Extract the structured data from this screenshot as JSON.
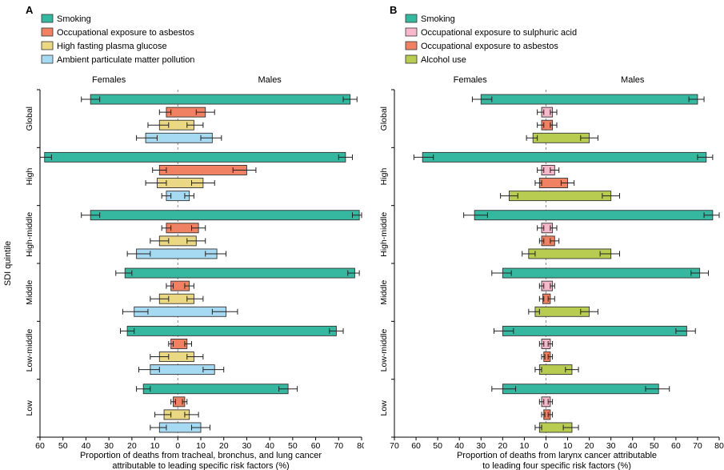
{
  "figure": {
    "background": "#ffffff",
    "bar_stroke": "#333333",
    "error_color": "#222222",
    "zero_line_color": "#8a8a8a"
  },
  "chart_data": [
    {
      "type": "bar",
      "panel_label": "A",
      "orientation": "horizontal-diverging",
      "female_label": "Females",
      "male_label": "Males",
      "ylabel": "SDI quintile",
      "xlabel_lines": [
        "Proportion of deaths from tracheal, bronchus, and lung cancer",
        "attributable to leading specific risk factors (%)"
      ],
      "categories": [
        "Global",
        "High",
        "High-middle",
        "Middle",
        "Low-middle",
        "Low"
      ],
      "x_domain": [
        -60,
        80
      ],
      "x_tick_step": 10,
      "legend_position": "top-left",
      "grid": false,
      "series": [
        {
          "name": "Smoking",
          "color": "#35b7a0",
          "female": [
            38,
            58,
            38,
            23,
            22,
            15
          ],
          "female_ci": [
            [
              34,
              42
            ],
            [
              55,
              60
            ],
            [
              34,
              42
            ],
            [
              20,
              27
            ],
            [
              19,
              25
            ],
            [
              12,
              18
            ]
          ],
          "male": [
            75,
            73,
            79,
            77,
            69,
            48
          ],
          "male_ci": [
            [
              72,
              78
            ],
            [
              70,
              76
            ],
            [
              76,
              80
            ],
            [
              74,
              79
            ],
            [
              66,
              72
            ],
            [
              44,
              52
            ]
          ]
        },
        {
          "name": "Occupational exposure to asbestos",
          "color": "#f08162",
          "female": [
            5,
            8,
            5,
            3,
            3,
            2
          ],
          "female_ci": [
            [
              3,
              8
            ],
            [
              5,
              11
            ],
            [
              3,
              7
            ],
            [
              2,
              5
            ],
            [
              2,
              4
            ],
            [
              1,
              3
            ]
          ],
          "male": [
            12,
            30,
            9,
            5,
            4,
            3
          ],
          "male_ci": [
            [
              8,
              16
            ],
            [
              24,
              34
            ],
            [
              6,
              12
            ],
            [
              3,
              7
            ],
            [
              3,
              6
            ],
            [
              2,
              4
            ]
          ]
        },
        {
          "name": "High fasting plasma glucose",
          "color": "#ead884",
          "female": [
            8,
            9,
            8,
            8,
            8,
            6
          ],
          "female_ci": [
            [
              4,
              13
            ],
            [
              5,
              14
            ],
            [
              4,
              12
            ],
            [
              4,
              12
            ],
            [
              4,
              12
            ],
            [
              3,
              10
            ]
          ],
          "male": [
            7,
            11,
            8,
            7,
            7,
            5
          ],
          "male_ci": [
            [
              4,
              11
            ],
            [
              6,
              16
            ],
            [
              4,
              12
            ],
            [
              4,
              11
            ],
            [
              4,
              11
            ],
            [
              3,
              9
            ]
          ]
        },
        {
          "name": "Ambient particulate matter pollution",
          "color": "#a6d9f2",
          "female": [
            14,
            5,
            18,
            19,
            12,
            8
          ],
          "female_ci": [
            [
              9,
              18
            ],
            [
              3,
              7
            ],
            [
              12,
              22
            ],
            [
              13,
              24
            ],
            [
              8,
              17
            ],
            [
              5,
              12
            ]
          ],
          "male": [
            15,
            5,
            17,
            21,
            16,
            10
          ],
          "male_ci": [
            [
              10,
              19
            ],
            [
              3,
              7
            ],
            [
              12,
              21
            ],
            [
              15,
              26
            ],
            [
              11,
              20
            ],
            [
              6,
              14
            ]
          ]
        }
      ]
    },
    {
      "type": "bar",
      "panel_label": "B",
      "orientation": "horizontal-diverging",
      "female_label": "Females",
      "male_label": "Males",
      "ylabel": "",
      "xlabel_lines": [
        "Proportion of deaths from larynx cancer attributable",
        "to leading four specific risk factors (%)"
      ],
      "categories": [
        "Global",
        "High",
        "High-middle",
        "Middle",
        "Low-middle",
        "Low"
      ],
      "x_domain": [
        -70,
        80
      ],
      "x_tick_step": 10,
      "legend_position": "top-left",
      "grid": false,
      "series": [
        {
          "name": "Smoking",
          "color": "#35b7a0",
          "female": [
            30,
            57,
            33,
            20,
            20,
            20
          ],
          "female_ci": [
            [
              25,
              34
            ],
            [
              52,
              61
            ],
            [
              27,
              38
            ],
            [
              16,
              25
            ],
            [
              15,
              24
            ],
            [
              14,
              25
            ]
          ],
          "male": [
            70,
            74,
            77,
            71,
            65,
            52
          ],
          "male_ci": [
            [
              66,
              73
            ],
            [
              70,
              77
            ],
            [
              73,
              80
            ],
            [
              67,
              75
            ],
            [
              60,
              69
            ],
            [
              46,
              57
            ]
          ]
        },
        {
          "name": "Occupational exposure to sulphuric acid",
          "color": "#f6b8ca",
          "female": [
            2,
            2,
            2,
            2,
            2,
            2
          ],
          "female_ci": [
            [
              1,
              4
            ],
            [
              1,
              4
            ],
            [
              1,
              4
            ],
            [
              1,
              3
            ],
            [
              1,
              3
            ],
            [
              1,
              3
            ]
          ],
          "male": [
            3,
            4,
            3,
            3,
            2,
            2
          ],
          "male_ci": [
            [
              2,
              5
            ],
            [
              2,
              6
            ],
            [
              2,
              5
            ],
            [
              2,
              4
            ],
            [
              1,
              3
            ],
            [
              1,
              3
            ]
          ]
        },
        {
          "name": "Occupational exposure to asbestos",
          "color": "#f08162",
          "female": [
            2,
            3,
            2,
            1.5,
            1,
            1
          ],
          "female_ci": [
            [
              1,
              4
            ],
            [
              2,
              5
            ],
            [
              1,
              3
            ],
            [
              1,
              3
            ],
            [
              0.5,
              2
            ],
            [
              0.5,
              2
            ]
          ],
          "male": [
            3,
            10,
            4,
            2,
            2,
            2
          ],
          "male_ci": [
            [
              2,
              5
            ],
            [
              7,
              13
            ],
            [
              2,
              6
            ],
            [
              1,
              4
            ],
            [
              1,
              3
            ],
            [
              1,
              3
            ]
          ]
        },
        {
          "name": "Alcohol use",
          "color": "#b8cc52",
          "female": [
            6,
            17,
            8,
            5,
            3,
            3
          ],
          "female_ci": [
            [
              4,
              9
            ],
            [
              13,
              21
            ],
            [
              5,
              11
            ],
            [
              3,
              8
            ],
            [
              2,
              5
            ],
            [
              2,
              5
            ]
          ],
          "male": [
            20,
            30,
            30,
            20,
            12,
            12
          ],
          "male_ci": [
            [
              16,
              24
            ],
            [
              26,
              34
            ],
            [
              25,
              34
            ],
            [
              16,
              24
            ],
            [
              9,
              15
            ],
            [
              8,
              15
            ]
          ]
        }
      ]
    }
  ]
}
